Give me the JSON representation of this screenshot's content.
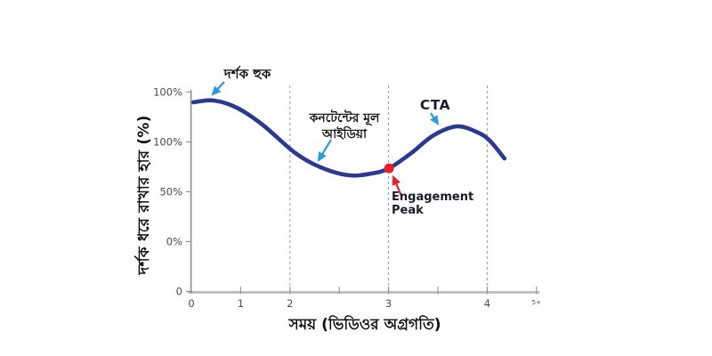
{
  "chart_data": {
    "type": "line",
    "title": "",
    "xlabel": "সময় (ভিডিওর অগ্রগতি)",
    "ylabel": "দর্শক ধরে রাখার হার (%)",
    "x_tick_labels": [
      "0",
      "1",
      "2",
      "",
      "3",
      "",
      "4",
      "5+"
    ],
    "y_tick_labels": [
      "0",
      "0%",
      "50%",
      "100%",
      "100%"
    ],
    "grid": "dashed vertical milestone lines only",
    "legend": "none",
    "curve_units": "x in axis tick units (0-7), y in percent retention (0-100)",
    "curve": [
      [
        0.04,
        94.9
      ],
      [
        0.45,
        95.8
      ],
      [
        0.92,
        92.2
      ],
      [
        1.44,
        83.7
      ],
      [
        2.11,
        69.4
      ],
      [
        2.62,
        62.3
      ],
      [
        3.19,
        58.3
      ],
      [
        3.66,
        59.2
      ],
      [
        4.01,
        61.8
      ],
      [
        4.46,
        69.4
      ],
      [
        4.91,
        78.3
      ],
      [
        5.38,
        82.8
      ],
      [
        5.78,
        80.1
      ],
      [
        6.05,
        75.7
      ],
      [
        6.35,
        66.7
      ]
    ],
    "engagement_point": {
      "x": 4.01,
      "y": 61.8
    },
    "milestone_lines_x": [
      2,
      4,
      6
    ],
    "annotations": {
      "hook": "দর্শক হুক",
      "main_idea_line1": "কনটেন্টের মূল",
      "main_idea_line2": "আইডিয়া",
      "cta": "CTA",
      "engagement_peak": "Engagement Peak"
    },
    "colors": {
      "curve": "#2b3990",
      "annotation_arrow": "#2e9bd8",
      "highlight": "#e8212c",
      "milestone_line": "#9a9a9a",
      "axis_x": "#b8b8b8",
      "axis_y": "#8f8f8f",
      "tick_mark": "#8a8a8a",
      "tick_text": "#4a4a4a",
      "text": "#111111"
    }
  }
}
